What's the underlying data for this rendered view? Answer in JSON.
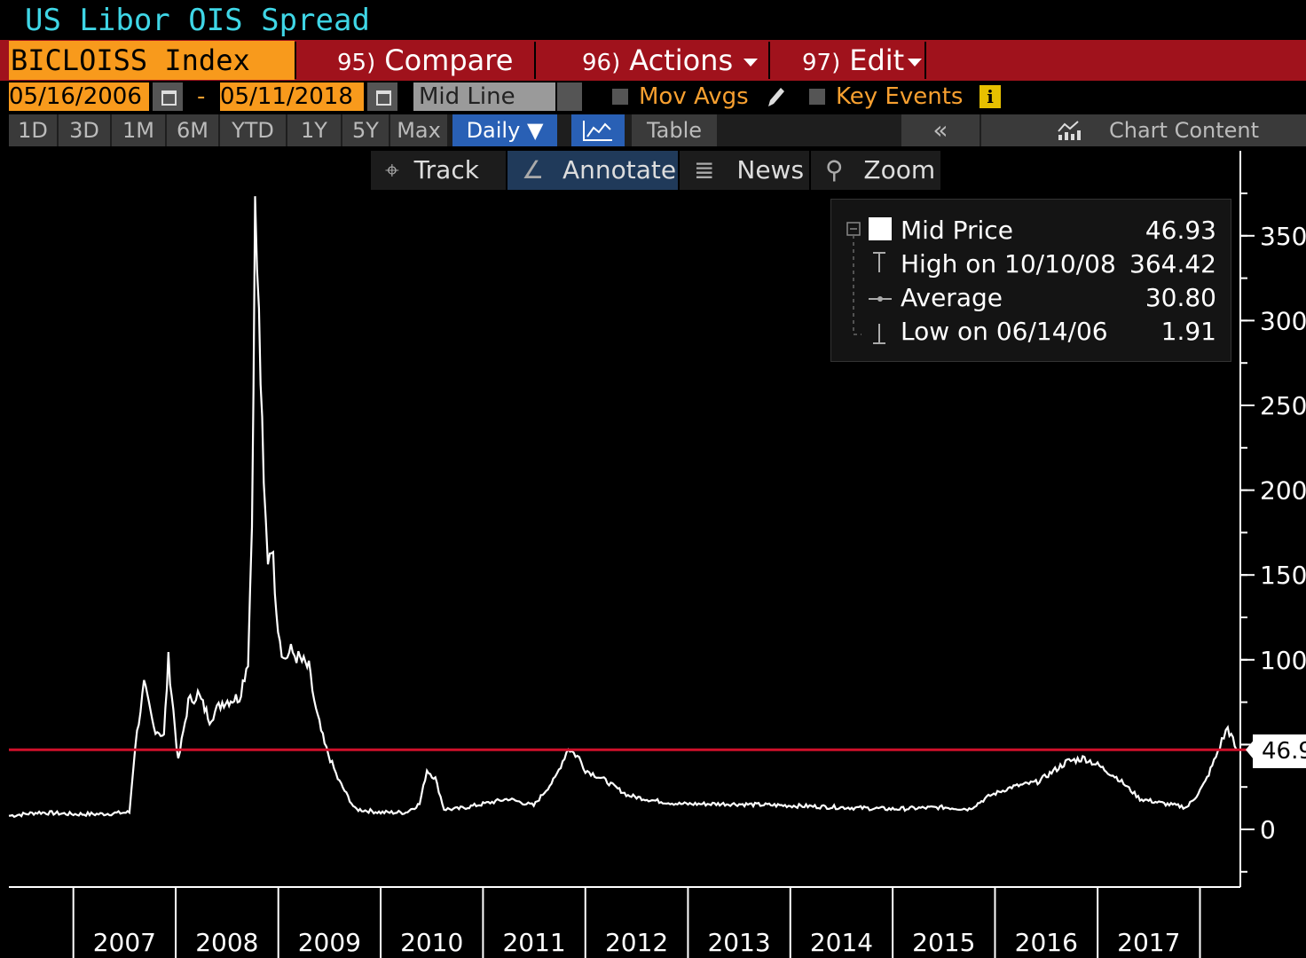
{
  "app": {
    "title": "US Libor OIS Spread"
  },
  "toolbar": {
    "ticker": "BICLOISS Index",
    "compare_num": "95)",
    "compare_label": "Compare",
    "actions_num": "96)",
    "actions_label": "Actions",
    "edit_num": "97)",
    "edit_label": "Edit"
  },
  "daterow": {
    "start_date": "05/16/2006",
    "dash": "-",
    "end_date": "05/11/2018",
    "line_type": "Mid Line",
    "mov_avgs": "Mov Avgs",
    "key_events": "Key Events"
  },
  "periods": [
    "1D",
    "3D",
    "1M",
    "6M",
    "YTD",
    "1Y",
    "5Y",
    "Max"
  ],
  "frequency": "Daily",
  "table_label": "Table",
  "collapse_label": "«",
  "chart_content_label": "Chart Content",
  "modes": {
    "track": "Track",
    "annotate": "Annotate",
    "news": "News",
    "zoom": "Zoom"
  },
  "legend": {
    "mid_label": "Mid Price",
    "mid_value": "46.93",
    "high_label": "High on 10/10/08",
    "high_value": "364.42",
    "avg_label": "Average",
    "avg_value": "30.80",
    "low_label": "Low on 06/14/06",
    "low_value": "1.91"
  },
  "last_value_label": "46.9",
  "colors": {
    "background": "#000000",
    "line": "#ffffff",
    "reference_line": "#d0102a",
    "accent": "#f89a1c",
    "bar": "#a0121c"
  },
  "chart_data": {
    "type": "line",
    "series": [
      {
        "name": "Mid Price",
        "x": [
          "2006-05-16",
          "2006-09-01",
          "2007-01-01",
          "2007-04-01",
          "2007-07-20",
          "2007-08-10",
          "2007-09-10",
          "2007-10-15",
          "2007-11-20",
          "2007-12-06",
          "2008-01-10",
          "2008-02-15",
          "2008-03-20",
          "2008-05-01",
          "2008-06-15",
          "2008-08-15",
          "2008-09-15",
          "2008-09-29",
          "2008-10-10",
          "2008-10-24",
          "2008-11-10",
          "2008-11-25",
          "2008-12-08",
          "2008-12-31",
          "2009-01-20",
          "2009-02-15",
          "2009-03-20",
          "2009-04-20",
          "2009-05-15",
          "2009-06-15",
          "2009-08-01",
          "2009-10-01",
          "2010-01-01",
          "2010-04-01",
          "2010-05-20",
          "2010-06-15",
          "2010-07-15",
          "2010-08-15",
          "2010-10-01",
          "2011-01-01",
          "2011-04-01",
          "2011-07-01",
          "2011-09-15",
          "2011-11-01",
          "2011-12-10",
          "2012-01-01",
          "2012-03-01",
          "2012-06-01",
          "2012-09-01",
          "2012-12-01",
          "2013-06-01",
          "2014-01-01",
          "2014-07-01",
          "2015-01-01",
          "2015-07-01",
          "2015-10-01",
          "2015-12-15",
          "2016-03-01",
          "2016-06-01",
          "2016-09-15",
          "2016-11-15",
          "2017-01-01",
          "2017-03-15",
          "2017-06-01",
          "2017-09-01",
          "2017-11-15",
          "2017-12-20",
          "2018-01-20",
          "2018-02-20",
          "2018-03-20",
          "2018-04-10",
          "2018-05-11"
        ],
        "values": [
          8,
          10,
          9,
          9,
          10,
          50,
          85,
          60,
          55,
          100,
          40,
          75,
          80,
          65,
          75,
          78,
          100,
          180,
          364,
          300,
          200,
          160,
          170,
          120,
          100,
          105,
          100,
          95,
          70,
          50,
          30,
          12,
          10,
          10,
          15,
          35,
          30,
          12,
          12,
          15,
          18,
          14,
          30,
          48,
          42,
          35,
          30,
          20,
          17,
          15,
          15,
          14,
          13,
          12,
          13,
          12,
          20,
          25,
          28,
          40,
          42,
          38,
          30,
          18,
          15,
          13,
          20,
          28,
          40,
          52,
          60,
          47
        ]
      }
    ],
    "reference_line": {
      "value": 46.93
    },
    "yticks": [
      0,
      50,
      100,
      150,
      200,
      250,
      300,
      350
    ],
    "ytick_labels": [
      "0",
      "",
      "100",
      "150",
      "200",
      "250",
      "300",
      "350"
    ],
    "xlabels": [
      "2007",
      "2008",
      "2009",
      "2010",
      "2011",
      "2012",
      "2013",
      "2014",
      "2015",
      "2016",
      "2017"
    ],
    "ylim": [
      -25,
      380
    ],
    "xlim": [
      "2006-05-16",
      "2018-05-25"
    ]
  }
}
